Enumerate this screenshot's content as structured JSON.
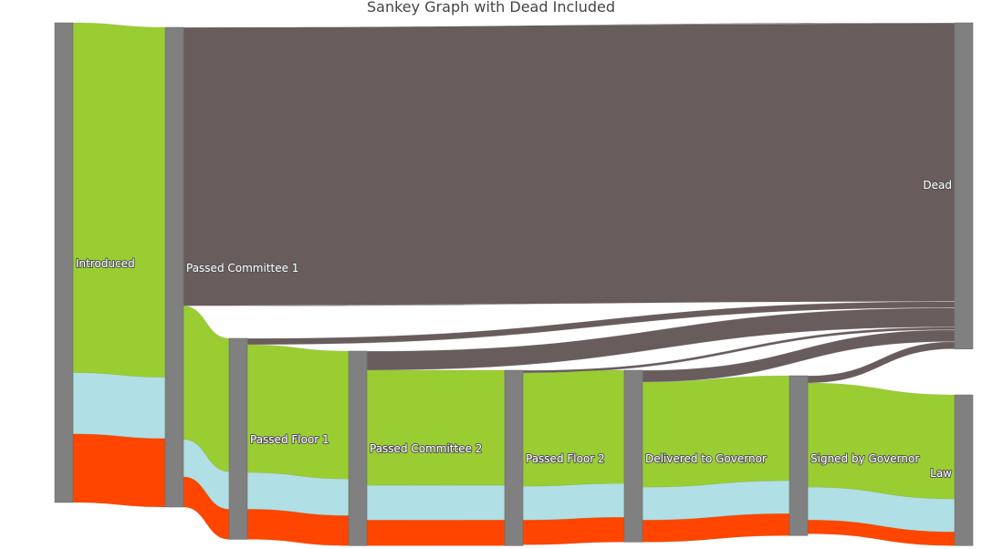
{
  "chart_data": {
    "type": "sankey",
    "title": "Sankey Graph with Dead Included",
    "nodes": [
      {
        "id": "introduced",
        "label": "Introduced"
      },
      {
        "id": "committee1",
        "label": "Passed Committee 1"
      },
      {
        "id": "floor1",
        "label": "Passed Floor 1"
      },
      {
        "id": "committee2",
        "label": "Passed Committee 2"
      },
      {
        "id": "floor2",
        "label": "Passed Floor 2"
      },
      {
        "id": "governor_delivered",
        "label": "Delivered to Governor"
      },
      {
        "id": "governor_signed",
        "label": "Signed by Governor"
      },
      {
        "id": "law",
        "label": "Law"
      },
      {
        "id": "dead",
        "label": "Dead"
      }
    ],
    "links": [
      {
        "source": "introduced",
        "target": "committee1",
        "category": "green",
        "value": 383
      },
      {
        "source": "introduced",
        "target": "committee1",
        "category": "blue",
        "value": 67
      },
      {
        "source": "introduced",
        "target": "committee1",
        "category": "red",
        "value": 75
      },
      {
        "source": "committee1",
        "target": "dead",
        "category": "dead",
        "value": 305
      },
      {
        "source": "committee1",
        "target": "floor1",
        "category": "green",
        "value": 146
      },
      {
        "source": "committee1",
        "target": "floor1",
        "category": "blue",
        "value": 41
      },
      {
        "source": "committee1",
        "target": "floor1",
        "category": "red",
        "value": 33
      },
      {
        "source": "floor1",
        "target": "dead",
        "category": "dead",
        "value": 7
      },
      {
        "source": "floor1",
        "target": "committee2",
        "category": "green",
        "value": 140
      },
      {
        "source": "floor1",
        "target": "committee2",
        "category": "blue",
        "value": 40
      },
      {
        "source": "floor1",
        "target": "committee2",
        "category": "red",
        "value": 33
      },
      {
        "source": "committee2",
        "target": "dead",
        "category": "dead",
        "value": 21
      },
      {
        "source": "committee2",
        "target": "floor2",
        "category": "green",
        "value": 126
      },
      {
        "source": "committee2",
        "target": "floor2",
        "category": "blue",
        "value": 38
      },
      {
        "source": "committee2",
        "target": "floor2",
        "category": "red",
        "value": 28
      },
      {
        "source": "floor2",
        "target": "dead",
        "category": "dead",
        "value": 3
      },
      {
        "source": "floor2",
        "target": "governor_delivered",
        "category": "green",
        "value": 124
      },
      {
        "source": "floor2",
        "target": "governor_delivered",
        "category": "blue",
        "value": 37
      },
      {
        "source": "floor2",
        "target": "governor_delivered",
        "category": "red",
        "value": 27
      },
      {
        "source": "governor_delivered",
        "target": "dead",
        "category": "dead",
        "value": 13
      },
      {
        "source": "governor_delivered",
        "target": "governor_signed",
        "category": "green",
        "value": 115
      },
      {
        "source": "governor_delivered",
        "target": "governor_signed",
        "category": "blue",
        "value": 36
      },
      {
        "source": "governor_delivered",
        "target": "governor_signed",
        "category": "red",
        "value": 24
      },
      {
        "source": "governor_signed",
        "target": "dead",
        "category": "dead",
        "value": 8
      },
      {
        "source": "governor_signed",
        "target": "law",
        "category": "green",
        "value": 114
      },
      {
        "source": "governor_signed",
        "target": "law",
        "category": "blue",
        "value": 36
      },
      {
        "source": "governor_signed",
        "target": "law",
        "category": "red",
        "value": 15
      }
    ],
    "colors": {
      "node": "#808080",
      "green": "#9acd32",
      "blue": "#b0dfe5",
      "red": "#ff4500",
      "dead": "#685c5c"
    }
  }
}
